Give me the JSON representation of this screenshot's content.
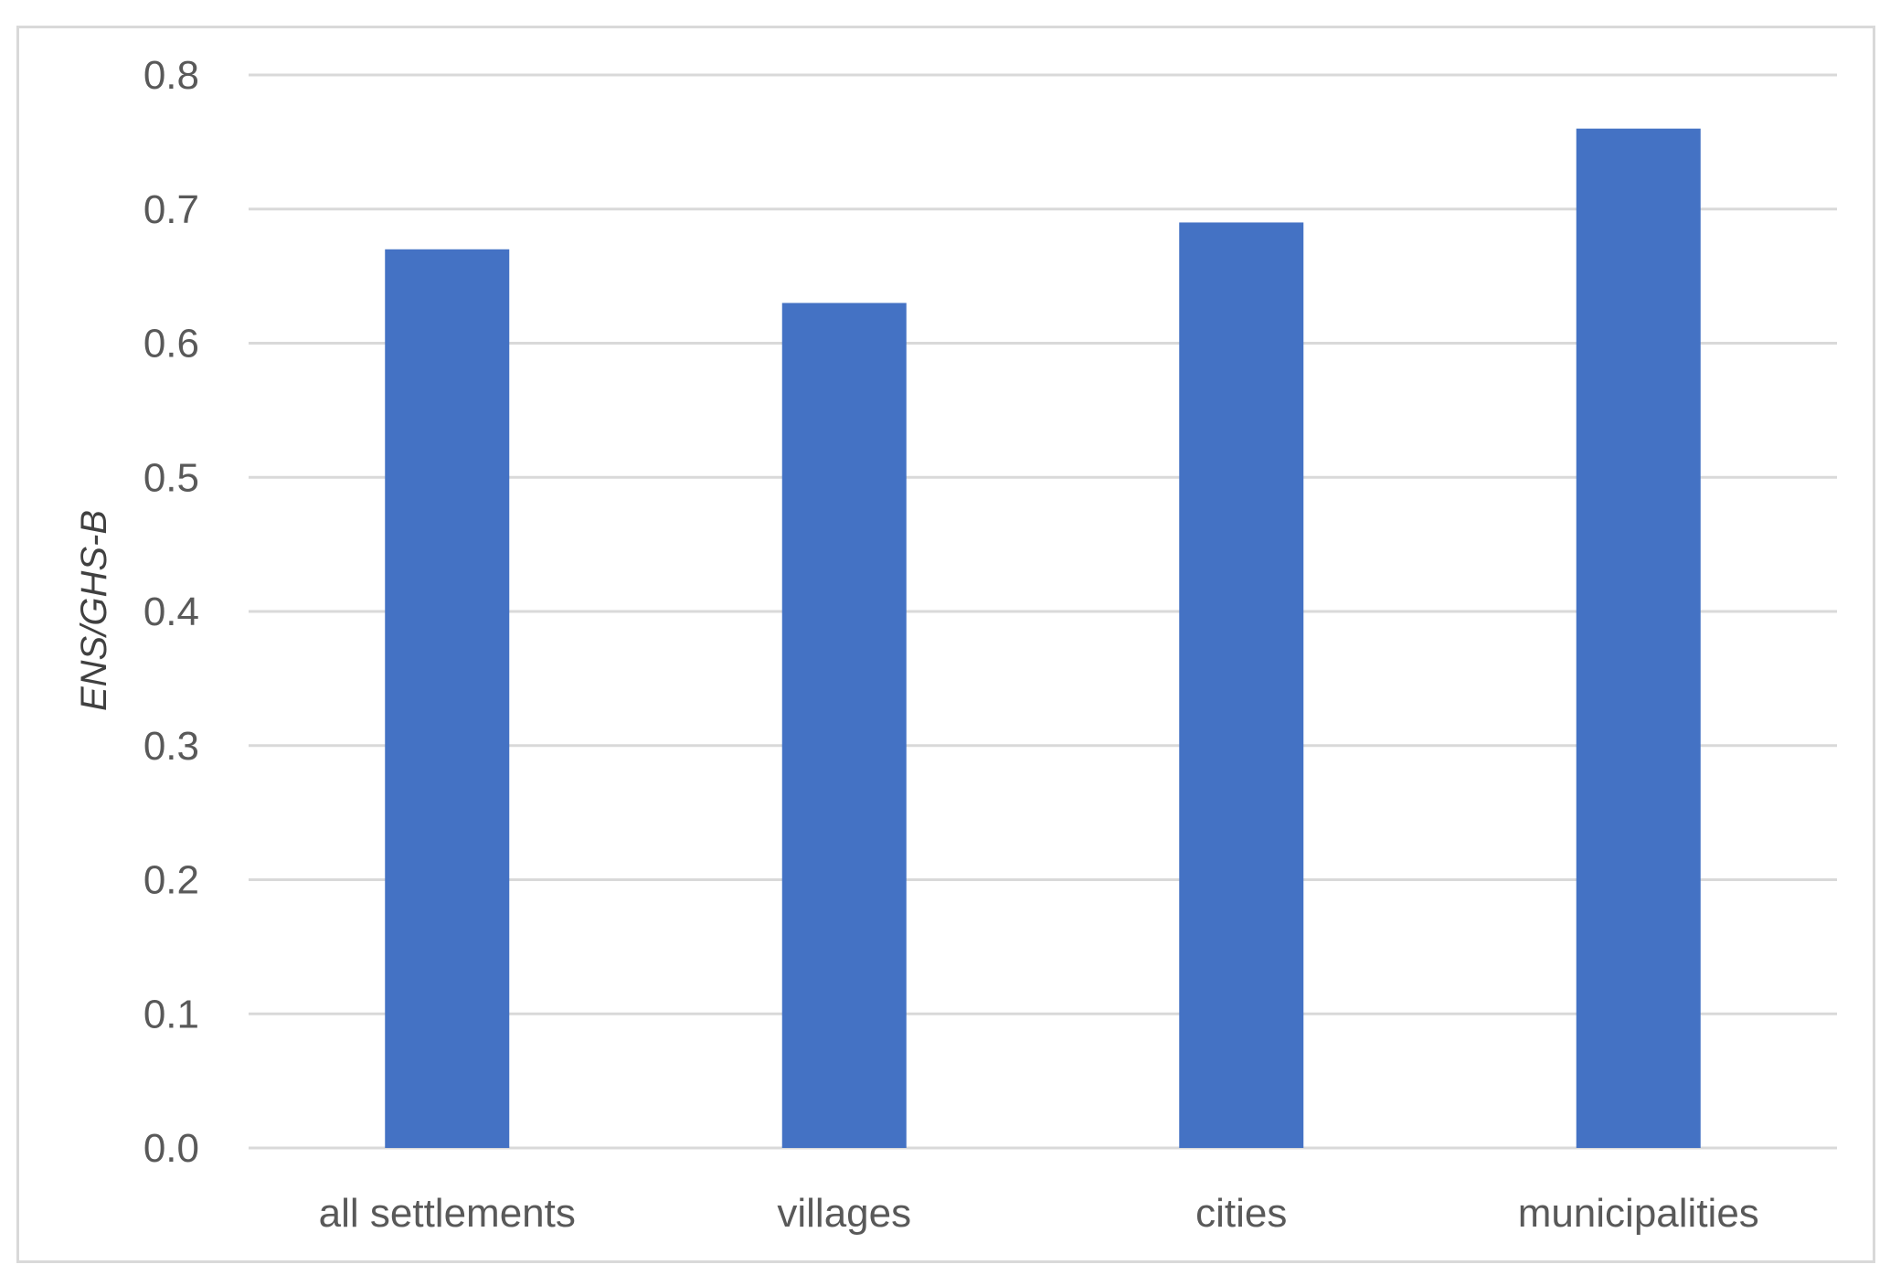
{
  "chart_data": {
    "type": "bar",
    "title": "",
    "xlabel": "",
    "ylabel": "ENS/GHS-B",
    "categories": [
      "all settlements",
      "villages",
      "cities",
      "municipalities"
    ],
    "values": [
      0.67,
      0.63,
      0.69,
      0.76
    ],
    "ylim": [
      0,
      0.8
    ],
    "yticks": [
      "0.0",
      "0.1",
      "0.2",
      "0.3",
      "0.4",
      "0.5",
      "0.6",
      "0.7",
      "0.8"
    ],
    "grid": true,
    "legend": "none",
    "colors": {
      "bar": "#4472c4",
      "grid": "#d9d9d9",
      "tick_text": "#595959",
      "frame": "#d9d9d9"
    }
  }
}
